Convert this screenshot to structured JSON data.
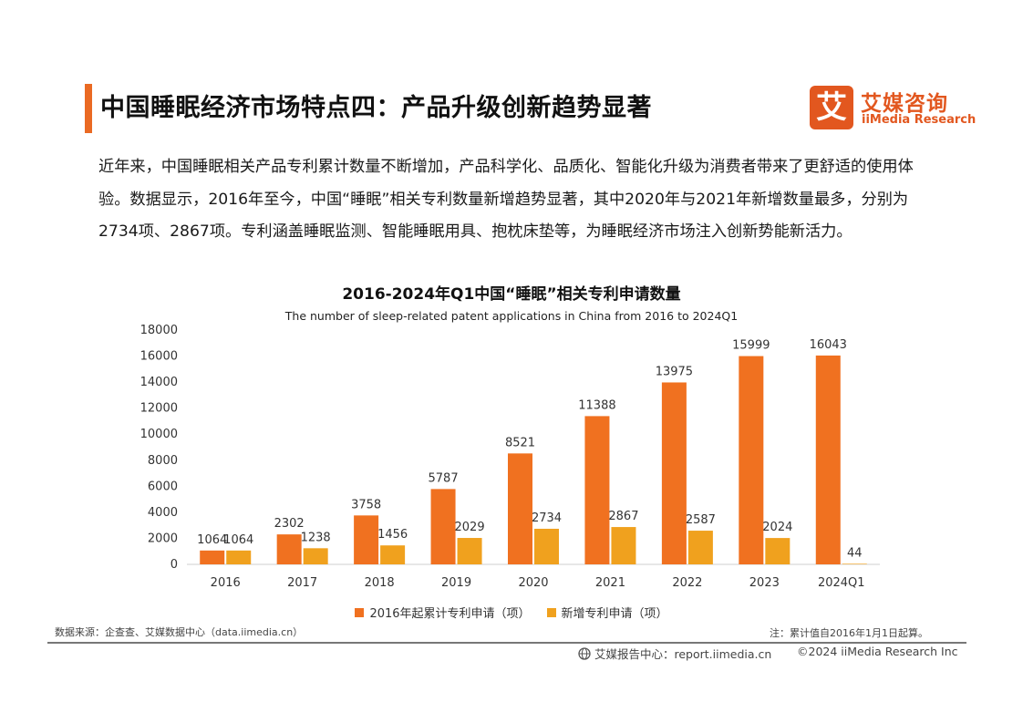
{
  "header": {
    "title": "中国睡眠经济市场特点四：产品升级创新趋势显著",
    "logo_mark": "艾",
    "logo_cn": "艾媒咨询",
    "logo_en": "iiMedia Research"
  },
  "intro_text": "近年来，中国睡眠相关产品专利累计数量不断增加，产品科学化、品质化、智能化升级为消费者带来了更舒适的使用体验。数据显示，2016年至今，中国“睡眠”相关专利数量新增趋势显著，其中2020年与2021年新增数量最多，分别为2734项、2867项。专利涵盖睡眠监测、智能睡眠用具、抱枕床垫等，为睡眠经济市场注入创新势能新活力。",
  "chart_data": {
    "type": "bar",
    "title": "2016-2024年Q1中国“睡眠”相关专利申请数量",
    "subtitle": "The number of sleep-related patent applications in China from 2016 to 2024Q1",
    "categories": [
      "2016",
      "2017",
      "2018",
      "2019",
      "2020",
      "2021",
      "2022",
      "2023",
      "2024Q1"
    ],
    "series": [
      {
        "name": "2016年起累计专利申请（项）",
        "color": "#f07120",
        "values": [
          1064,
          2302,
          3758,
          5787,
          8521,
          11388,
          13975,
          15999,
          16043
        ]
      },
      {
        "name": "新增专利申请（项）",
        "color": "#f0a11e",
        "values": [
          1064,
          1238,
          1456,
          2029,
          2734,
          2867,
          2587,
          2024,
          44
        ]
      }
    ],
    "ylim": [
      0,
      18000
    ],
    "yticks": [
      "0",
      "2000",
      "4000",
      "6000",
      "8000",
      "10000",
      "12000",
      "14000",
      "16000",
      "18000"
    ],
    "grid": false,
    "legend_position": "bottom"
  },
  "footer": {
    "source": "数据来源：企查查、艾媒数据中心（data.iimedia.cn）",
    "note": "注：累计值自2016年1月1日起算。",
    "report_center": "艾媒报告中心：report.iimedia.cn",
    "copyright": "©2024  iiMedia Research Inc"
  }
}
